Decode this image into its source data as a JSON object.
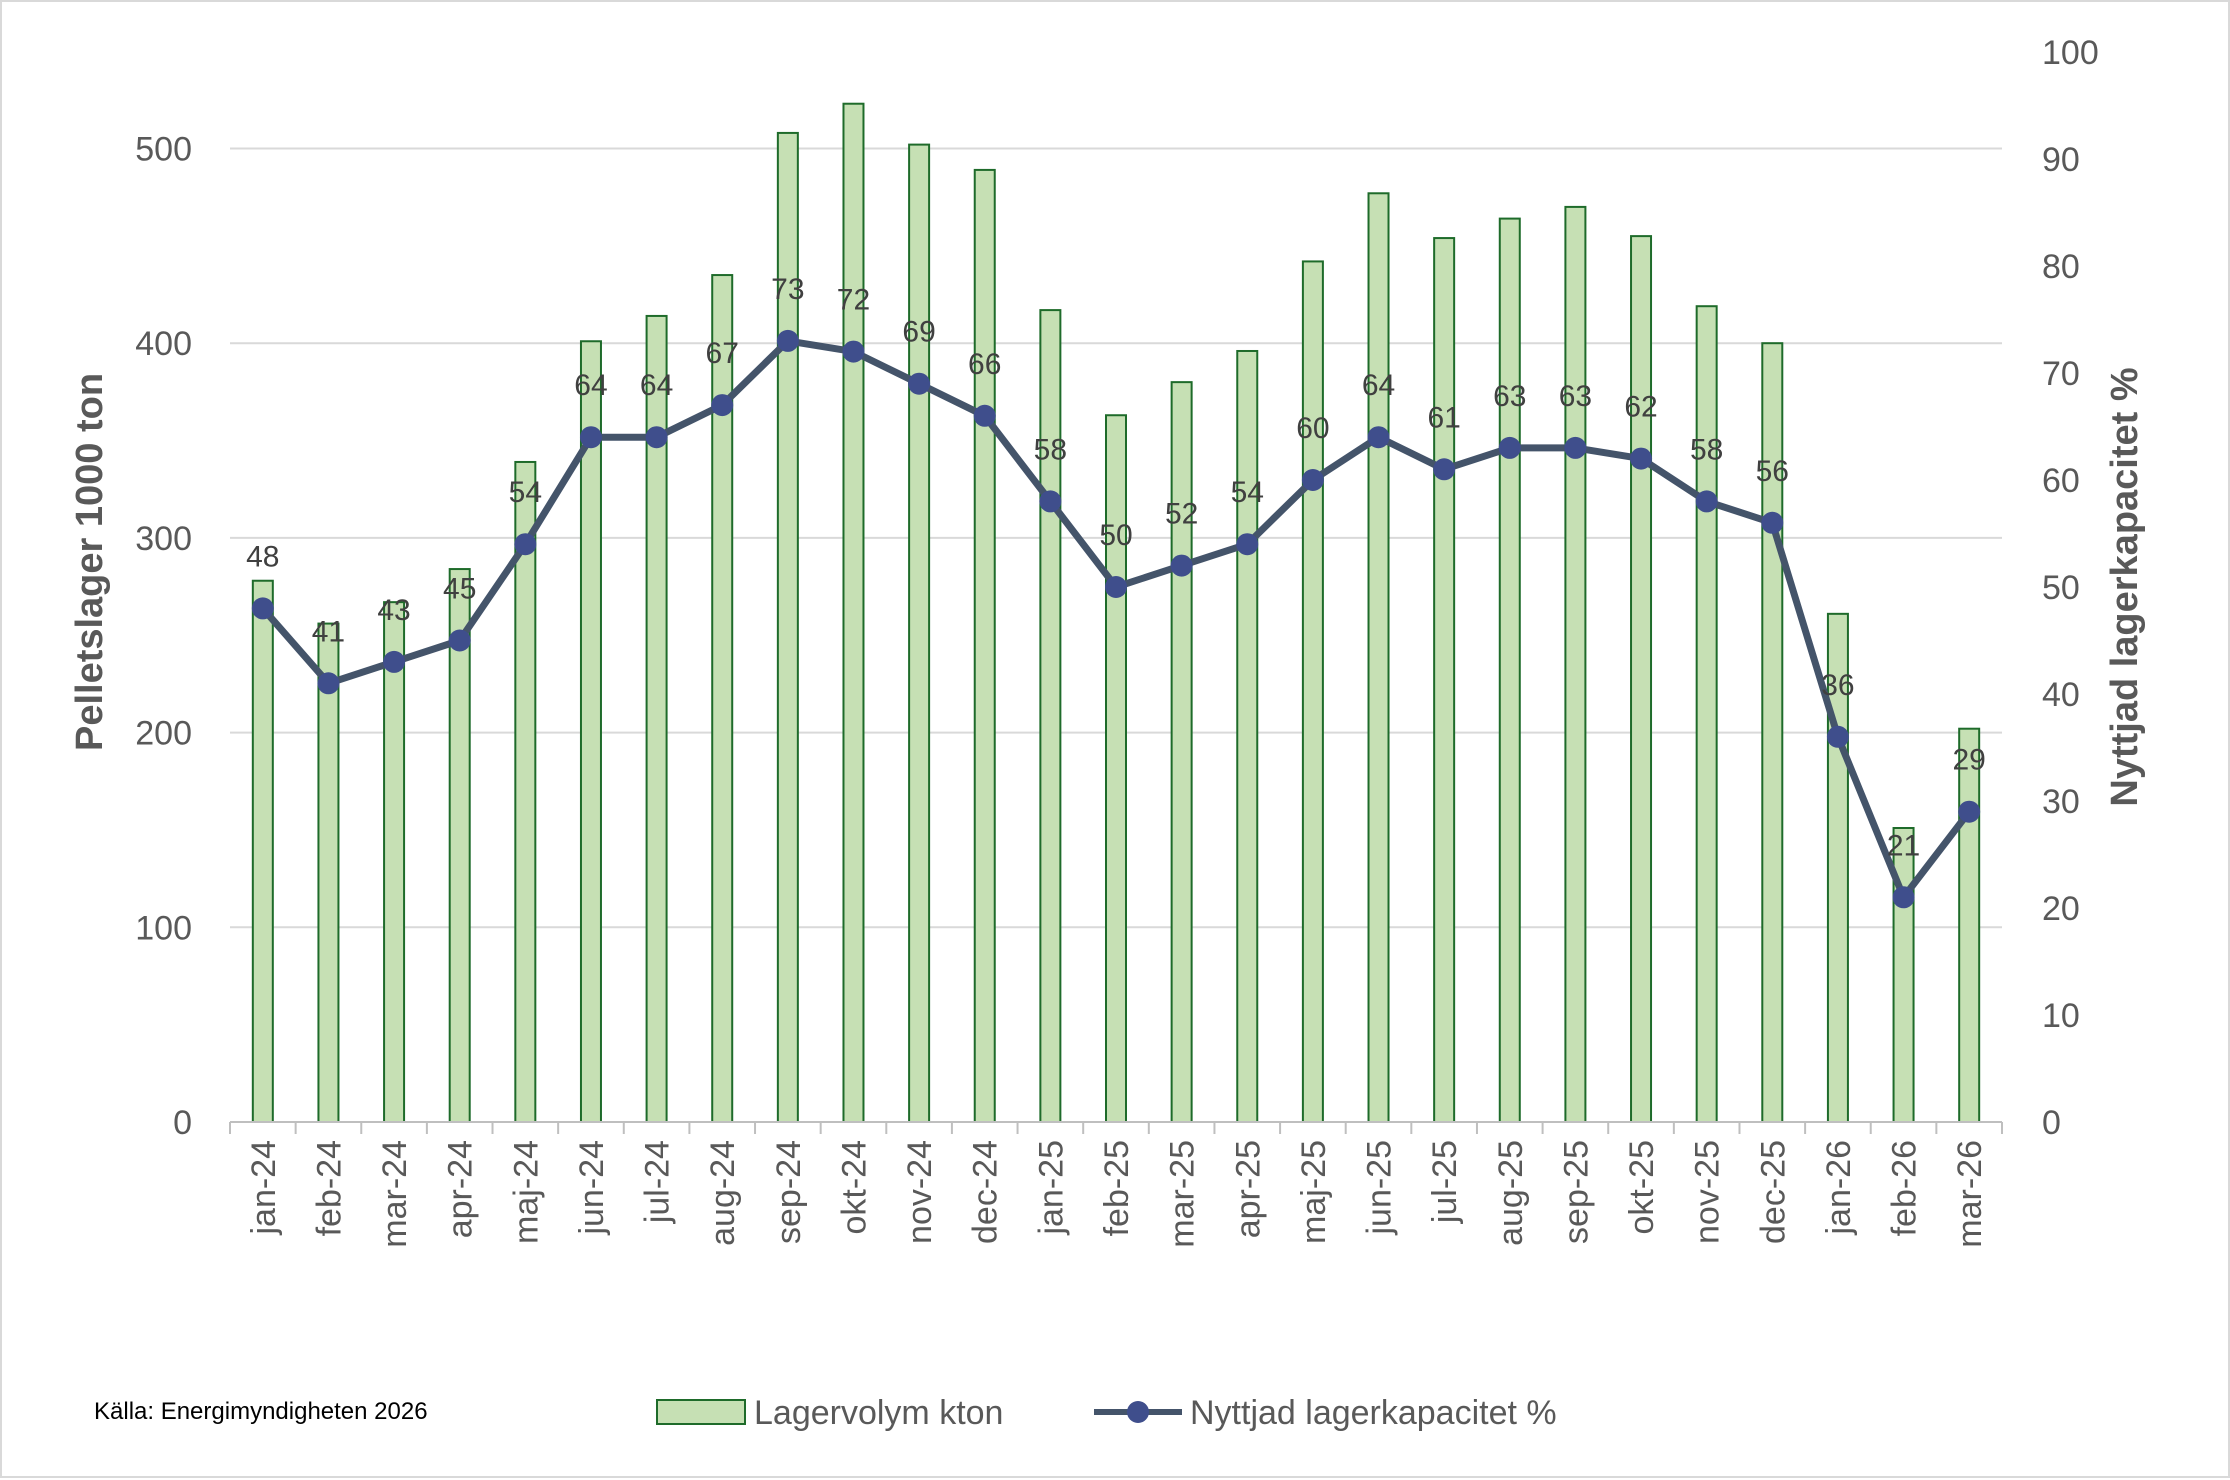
{
  "chart_data": {
    "type": "bar+line",
    "categories": [
      "jan-24",
      "feb-24",
      "mar-24",
      "apr-24",
      "maj-24",
      "jun-24",
      "jul-24",
      "aug-24",
      "sep-24",
      "okt-24",
      "nov-24",
      "dec-24",
      "jan-25",
      "feb-25",
      "mar-25",
      "apr-25",
      "maj-25",
      "jun-25",
      "jul-25",
      "aug-25",
      "sep-25",
      "okt-25",
      "nov-25",
      "dec-25",
      "jan-26",
      "feb-26",
      "mar-26"
    ],
    "series": [
      {
        "name": "Lagervolym kton",
        "type": "bar",
        "axis": "left",
        "color": "#c6e0b4",
        "border": "#1e6b2a",
        "values": [
          278,
          256,
          267,
          284,
          339,
          401,
          414,
          435,
          508,
          523,
          502,
          489,
          417,
          363,
          380,
          396,
          442,
          477,
          454,
          464,
          470,
          455,
          419,
          400,
          261,
          151,
          202
        ]
      },
      {
        "name": "Nyttjad lagerkapacitet %",
        "type": "line",
        "axis": "right",
        "color": "#44546a",
        "marker_color": "#3f4e8c",
        "values": [
          48,
          41,
          43,
          45,
          54,
          64,
          64,
          67,
          73,
          72,
          69,
          66,
          58,
          50,
          52,
          54,
          60,
          64,
          61,
          63,
          63,
          62,
          58,
          56,
          36,
          21,
          29
        ],
        "labels": [
          "48",
          "41",
          "43",
          "45",
          "54",
          "64",
          "64",
          "67",
          "73",
          "72",
          "69",
          "66",
          "58",
          "50",
          "52",
          "54",
          "60",
          "64",
          "61",
          "63",
          "63",
          "62",
          "58",
          "56",
          "36",
          "21",
          "29"
        ]
      }
    ],
    "y_left": {
      "label": "Pelletslager 1000 ton",
      "range": [
        0,
        550
      ],
      "ticks": [
        0,
        100,
        200,
        300,
        400,
        500
      ],
      "tick_labels": [
        "0",
        "100",
        "200",
        "300",
        "400",
        "500"
      ]
    },
    "y_right": {
      "label": "Nyttjad lagerkapacitet %",
      "range": [
        0,
        100
      ],
      "ticks": [
        0,
        10,
        20,
        30,
        40,
        50,
        60,
        70,
        80,
        90,
        100
      ],
      "tick_labels": [
        "0",
        "10",
        "20",
        "30",
        "40",
        "50",
        "60",
        "70",
        "80",
        "90",
        "100"
      ]
    },
    "grid": true,
    "legend": "bottom-center",
    "legend_items": [
      "Lagervolym kton",
      "Nyttjad lagerkapacitet %"
    ],
    "source": "Källa: Energimyndigheten 2026"
  }
}
